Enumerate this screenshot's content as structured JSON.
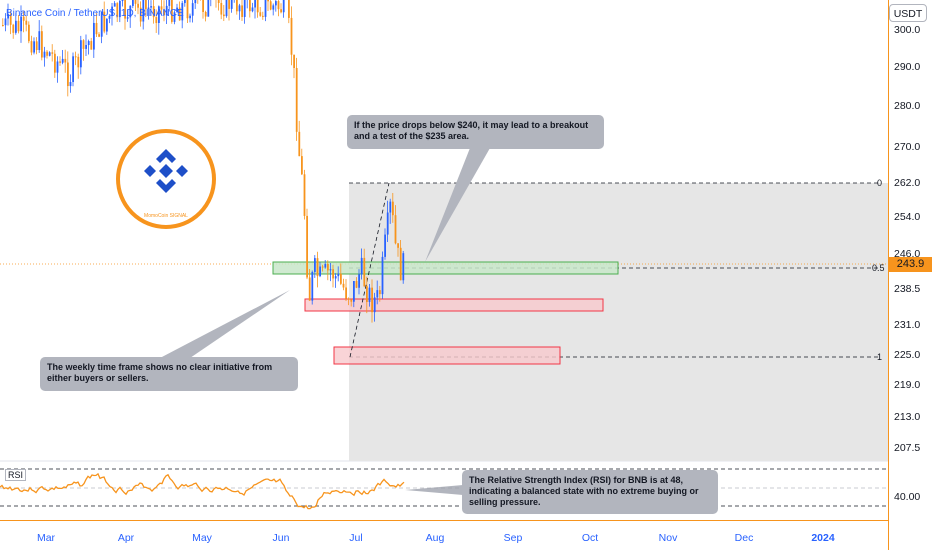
{
  "header": {
    "symbol": "Binance Coin / TetherUS, 1D, BINANCE",
    "currency": "USDT"
  },
  "price_axis": {
    "labels": [
      "300.0",
      "290.0",
      "280.0",
      "270.0",
      "262.0",
      "254.0",
      "246.0",
      "238.5",
      "231.0",
      "225.0",
      "219.0",
      "213.0",
      "207.5"
    ],
    "current_price": "243.9",
    "rsi_label": "40.00"
  },
  "time_axis": {
    "labels": [
      "Mar",
      "Apr",
      "May",
      "Jun",
      "Jul",
      "Aug",
      "Sep",
      "Oct",
      "Nov",
      "Dec",
      "2024"
    ]
  },
  "fib": {
    "levels": [
      "0",
      "0.5",
      "1"
    ]
  },
  "annotations": {
    "top_callout": "If the price drops below $240, it may lead to a breakout and a test of the $235 area.",
    "left_callout": "The weekly time frame shows no clear initiative from either buyers or sellers.",
    "rsi_callout": "The Relative Strength Index (RSI) for BNB is at 48, indicating a balanced state with no extreme buying or selling pressure."
  },
  "logo": {
    "caption": "MomoCoin SIGNAL"
  },
  "rsi": {
    "label": "RSI"
  },
  "colors": {
    "up": "#2962ff",
    "down": "#f7941d",
    "accent": "#f7941d",
    "green_zone": "#4caf50",
    "red_zone": "#f23645",
    "callout_bg": "#b2b5be"
  }
}
